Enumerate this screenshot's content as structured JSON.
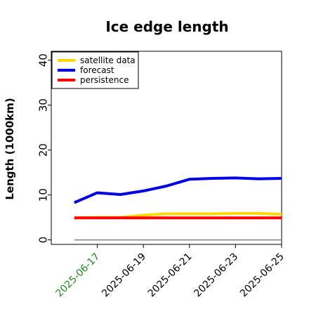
{
  "chart_data": {
    "type": "line",
    "title": "Ice edge length",
    "xlabel": "",
    "ylabel": "Length (1000km)",
    "x": [
      "2025-06-16",
      "2025-06-17",
      "2025-06-18",
      "2025-06-19",
      "2025-06-20",
      "2025-06-21",
      "2025-06-22",
      "2025-06-23",
      "2025-06-24",
      "2025-06-25"
    ],
    "x_tick_labels": [
      "2025-06-17",
      "2025-06-19",
      "2025-06-21",
      "2025-06-23",
      "2025-06-25"
    ],
    "x_tick_dates": [
      "2025-06-17",
      "2025-06-19",
      "2025-06-21",
      "2025-06-23",
      "2025-06-25"
    ],
    "highlighted_tick": "2025-06-17",
    "highlight_color": "#228b22",
    "xlim": [
      "2025-06-15",
      "2025-06-25"
    ],
    "ylim": [
      -1,
      42
    ],
    "y_ticks": [
      0,
      10,
      20,
      30,
      40
    ],
    "reference_line": {
      "y": 0,
      "color": "#808080"
    },
    "legend_position": "top-left",
    "grid": false,
    "series": [
      {
        "name": "satellite data",
        "color": "#ffd700",
        "values": [
          4.9,
          5.0,
          5.0,
          5.5,
          5.8,
          5.8,
          5.8,
          5.9,
          5.9,
          5.7
        ]
      },
      {
        "name": "forecast",
        "color": "#0000e6",
        "values": [
          8.3,
          10.5,
          10.1,
          10.9,
          12.0,
          13.5,
          13.7,
          13.8,
          13.6,
          13.7
        ]
      },
      {
        "name": "persistence",
        "color": "#ff0000",
        "values": [
          4.9,
          4.9,
          4.9,
          4.9,
          4.9,
          4.9,
          4.9,
          4.9,
          4.9,
          4.9
        ]
      }
    ]
  }
}
